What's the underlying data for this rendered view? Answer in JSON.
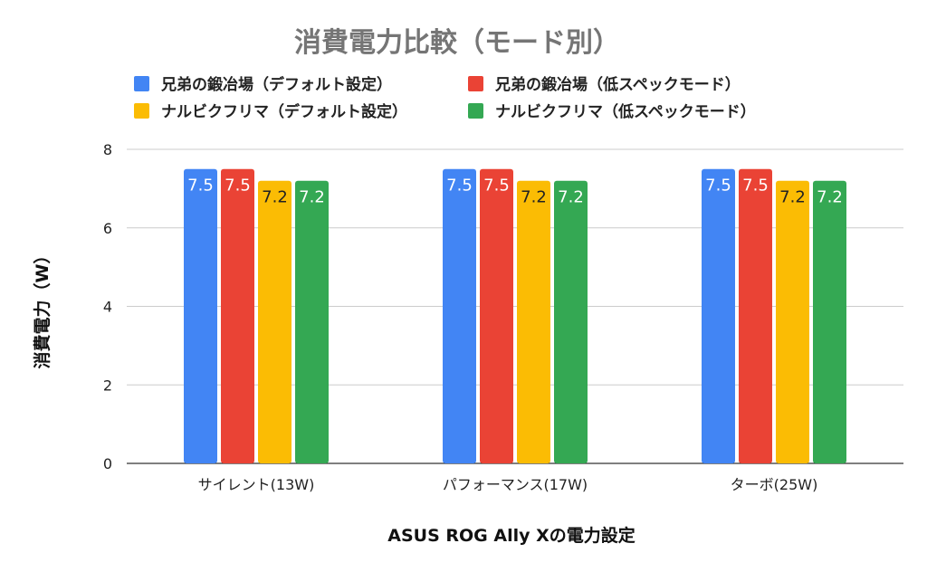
{
  "chart_data": {
    "type": "bar",
    "title": "消費電力比較（モード別）",
    "xlabel": "ASUS ROG Ally Xの電力設定",
    "ylabel": "消費電力（W）",
    "ylim": [
      0,
      8
    ],
    "yticks": [
      0,
      2,
      4,
      6,
      8
    ],
    "categories": [
      "サイレント(13W)",
      "パフォーマンス(17W)",
      "ターボ(25W)"
    ],
    "series": [
      {
        "name": "兄弟の鍛冶場（デフォルト設定）",
        "color": "#4285F4",
        "label_color": "#ffffff",
        "values": [
          7.5,
          7.5,
          7.5
        ]
      },
      {
        "name": "兄弟の鍛冶場（低スペックモード）",
        "color": "#EA4335",
        "label_color": "#ffffff",
        "values": [
          7.5,
          7.5,
          7.5
        ]
      },
      {
        "name": "ナルビクフリマ（デフォルト設定）",
        "color": "#FBBC04",
        "label_color": "#222222",
        "values": [
          7.2,
          7.2,
          7.2
        ]
      },
      {
        "name": "ナルビクフリマ（低スペックモード）",
        "color": "#34A853",
        "label_color": "#ffffff",
        "values": [
          7.2,
          7.2,
          7.2
        ]
      }
    ],
    "grid": true,
    "legend_position": "top"
  }
}
